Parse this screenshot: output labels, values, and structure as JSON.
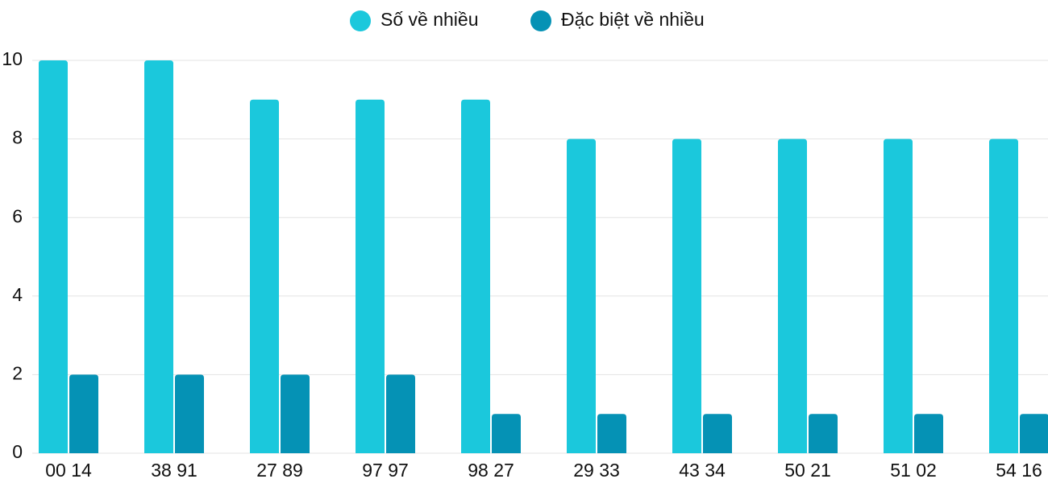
{
  "chart_data": {
    "type": "bar",
    "categories": [
      "00 14",
      "38 91",
      "27 89",
      "97 97",
      "98 27",
      "29 33",
      "43 34",
      "50 21",
      "51 02",
      "54 16"
    ],
    "series": [
      {
        "name": "Số về nhiều",
        "color": "#1bc8dc",
        "values": [
          10,
          10,
          9,
          9,
          9,
          8,
          8,
          8,
          8,
          8
        ]
      },
      {
        "name": "Đặc biệt về nhiều",
        "color": "#0592b5",
        "values": [
          2,
          2,
          2,
          2,
          1,
          1,
          1,
          1,
          1,
          1
        ]
      }
    ],
    "ylim": [
      0,
      10
    ],
    "yticks": [
      0,
      2,
      4,
      6,
      8,
      10
    ],
    "grid": true,
    "legend": "top"
  }
}
